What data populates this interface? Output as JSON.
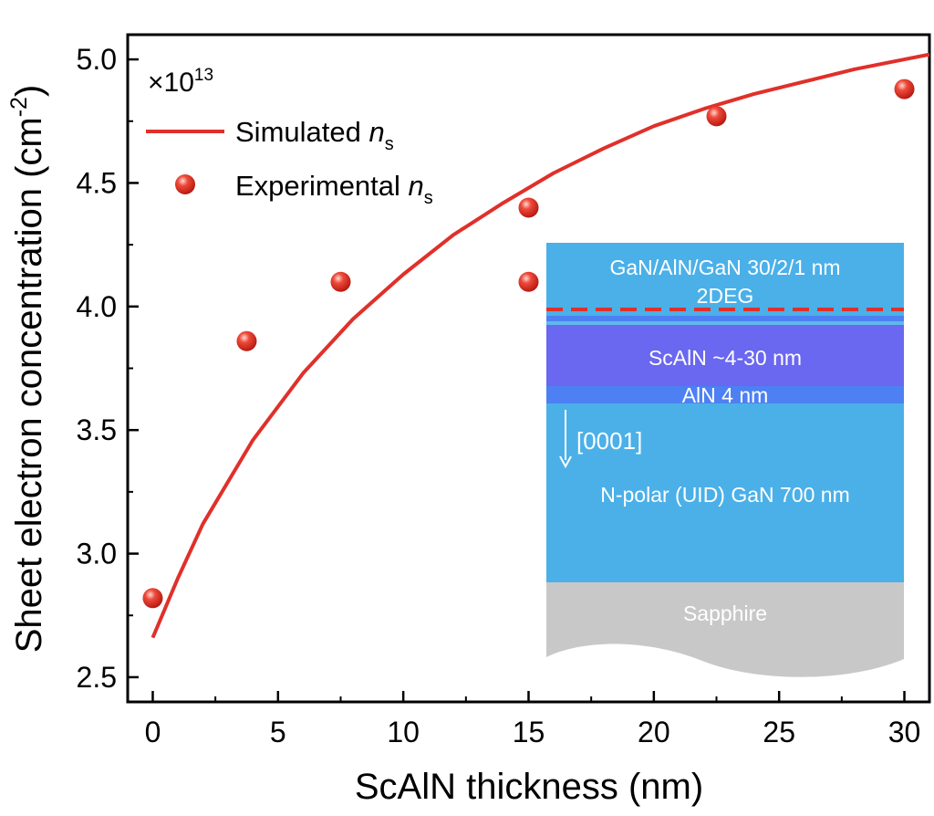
{
  "chart_data": {
    "type": "line+scatter",
    "xlabel": "ScAlN thickness (nm)",
    "ylabel": "Sheet electron concentration (cm",
    "ylabel_sup": "-2",
    "ylabel_close": ")",
    "xlim": [
      -1,
      31
    ],
    "ylim": [
      2.4,
      5.1
    ],
    "xticks": [
      0,
      5,
      10,
      15,
      20,
      25,
      30
    ],
    "xtick_labels": [
      "0",
      "5",
      "10",
      "15",
      "20",
      "25",
      "30"
    ],
    "yticks": [
      2.5,
      3.0,
      3.5,
      4.0,
      4.5,
      5.0
    ],
    "ytick_labels": [
      "2.5",
      "3.0",
      "3.5",
      "4.0",
      "4.5",
      "5.0"
    ],
    "multiplier": {
      "prefix": "×10",
      "exp": "13"
    },
    "series": [
      {
        "name": "Simulated",
        "subscript_symbol": "n",
        "subscript": "s",
        "kind": "line",
        "color": "#e0302a",
        "x": [
          0,
          1,
          2,
          4,
          6,
          8,
          10,
          12,
          14,
          16,
          18,
          20,
          22,
          24,
          26,
          28,
          30,
          31
        ],
        "y": [
          2.66,
          2.9,
          3.12,
          3.46,
          3.73,
          3.95,
          4.13,
          4.29,
          4.42,
          4.54,
          4.64,
          4.73,
          4.8,
          4.86,
          4.91,
          4.96,
          5.0,
          5.02
        ]
      },
      {
        "name": "Experimental",
        "subscript_symbol": "n",
        "subscript": "s",
        "kind": "scatter",
        "color": "#e0302a",
        "x": [
          0,
          3.75,
          7.5,
          15,
          15,
          22.5,
          30
        ],
        "y": [
          2.82,
          3.86,
          4.1,
          4.4,
          4.1,
          4.77,
          4.88
        ]
      }
    ],
    "legend_position": "top-left",
    "inset": {
      "layers": [
        {
          "label": "GaN/AlN/GaN 30/2/1 nm",
          "color": "#4bb0e8"
        },
        {
          "label": "2DEG",
          "color": "#e0302a"
        },
        {
          "label": "ScAlN ~4-30 nm",
          "color": "#6a67f0"
        },
        {
          "label": "AlN 4 nm",
          "color": "#4d80f2"
        },
        {
          "label": "[0001]",
          "color": "#ffffff"
        },
        {
          "label": "N-polar (UID) GaN 700 nm",
          "color": "#4bb0e8"
        },
        {
          "label": "Sapphire",
          "color": "#c8c8c8"
        }
      ]
    }
  }
}
